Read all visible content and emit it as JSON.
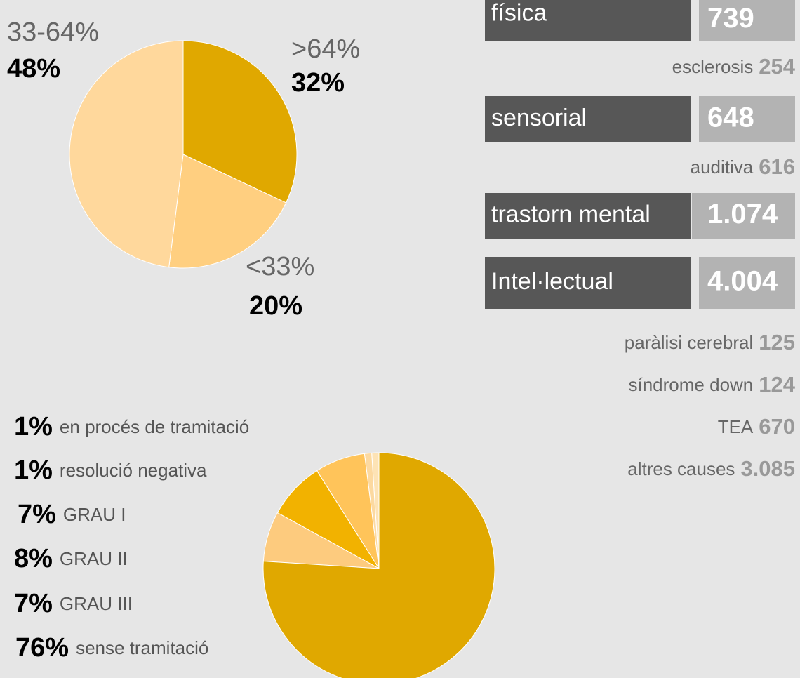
{
  "chart_data": [
    {
      "type": "pie",
      "categories": [
        ">64%",
        "<33%",
        "33-64%"
      ],
      "values": [
        32,
        20,
        48
      ],
      "value_labels": [
        "32%",
        "20%",
        "48%"
      ],
      "colors": [
        "#e0a800",
        "#ffcf80",
        "#ffd89c"
      ]
    },
    {
      "type": "pie",
      "categories": [
        "en procés de tramitació",
        "resolució negativa",
        "GRAU I",
        "GRAU II",
        "GRAU III",
        "sense tramitació"
      ],
      "values": [
        1,
        1,
        7,
        8,
        7,
        76
      ],
      "value_labels": [
        "1%",
        "1%",
        "7%",
        "8%",
        "7%",
        "76%"
      ],
      "colors": [
        "#fde3b5",
        "#fcd9a0",
        "#ffc45a",
        "#f2b200",
        "#fdcb7e",
        "#e0a800"
      ]
    }
  ],
  "groups": [
    {
      "label": "física",
      "value": "739",
      "items": [
        {
          "label": "esclerosis",
          "value": "254"
        }
      ]
    },
    {
      "label": "sensorial",
      "value": "648",
      "items": [
        {
          "label": "auditiva",
          "value": "616"
        }
      ]
    },
    {
      "label": "trastorn mental",
      "value": "1.074",
      "items": []
    },
    {
      "label": "Intel·lectual",
      "value": "4.004",
      "items": [
        {
          "label": "paràlisi cerebral",
          "value": "125"
        },
        {
          "label": "síndrome down",
          "value": "124"
        },
        {
          "label": "TEA",
          "value": "670"
        },
        {
          "label": "altres causes",
          "value": "3.085"
        }
      ]
    }
  ]
}
